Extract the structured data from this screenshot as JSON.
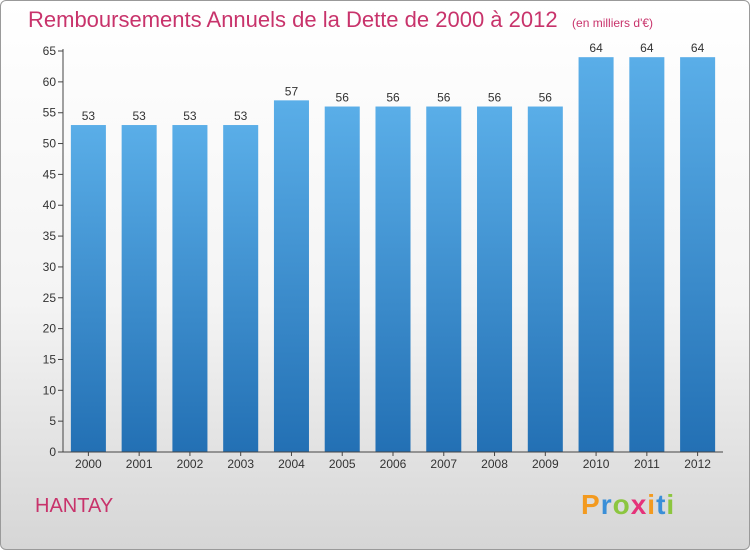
{
  "chart_data": {
    "type": "bar",
    "title": "Remboursements Annuels de la Dette de 2000 à 2012",
    "subtitle": "(en milliers d'€)",
    "categories": [
      "2000",
      "2001",
      "2002",
      "2003",
      "2004",
      "2005",
      "2006",
      "2007",
      "2008",
      "2009",
      "2010",
      "2011",
      "2012"
    ],
    "values": [
      53,
      53,
      53,
      53,
      57,
      56,
      56,
      56,
      56,
      56,
      64,
      64,
      64
    ],
    "ylim": [
      0,
      65
    ],
    "yticks": [
      0,
      5,
      10,
      15,
      20,
      25,
      30,
      35,
      40,
      45,
      50,
      55,
      60,
      65
    ],
    "xlabel": "",
    "ylabel": "",
    "grid": false,
    "data_labels": true
  },
  "commune": "HANTAY",
  "brand": {
    "letters": [
      "P",
      "r",
      "o",
      "x",
      "i",
      "t",
      "i"
    ],
    "colors": [
      "#f39a1f",
      "#3a8fd8",
      "#8cc63f",
      "#e5337a",
      "#f39a1f",
      "#3a8fd8",
      "#8cc63f"
    ]
  },
  "colors": {
    "title": "#c8336b",
    "bar_top": "#5aaee8",
    "bar_bottom": "#2370b4"
  }
}
